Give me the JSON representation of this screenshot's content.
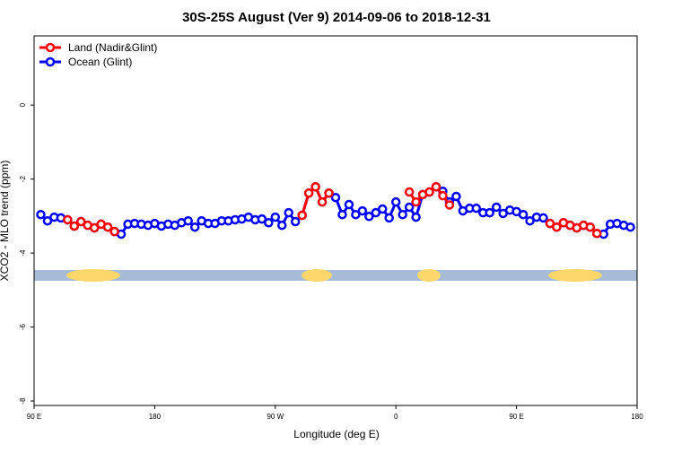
{
  "chart_data": {
    "type": "line",
    "title": "30S-25S August (Ver 9)   2014-09-06 to 2018-12-31",
    "x_label": "Longitude (deg E)",
    "y_label": "XCO2 - MLO trend (ppm)",
    "x": [
      -265,
      -260,
      -255,
      -250,
      -245,
      -240,
      -235,
      -230,
      -225,
      -220,
      -215,
      -210,
      -205,
      -200,
      -195,
      -190,
      -185,
      -180,
      -175,
      -170,
      -165,
      -160,
      -155,
      -150,
      -145,
      -140,
      -135,
      -130,
      -125,
      -120,
      -115,
      -110,
      -105,
      -100,
      -95,
      -90,
      -85,
      -80,
      -75,
      -70,
      -65,
      -60,
      -55,
      -50,
      -45,
      -40,
      -35,
      -30,
      -25,
      -20,
      -15,
      -10,
      -5,
      0,
      5,
      10,
      15,
      20,
      25,
      30,
      35,
      40,
      45,
      50,
      55,
      60,
      65,
      70,
      75,
      80,
      85,
      90,
      95,
      100,
      105,
      110,
      115,
      120,
      125,
      130,
      135,
      140,
      145,
      150,
      155,
      160,
      165,
      170,
      175
    ],
    "series": [
      {
        "name": "Ocean (Glint)",
        "color": "#0000ff",
        "values": [
          -2.96,
          -3.13,
          -3.03,
          -3.05,
          -3.1,
          -3.27,
          -3.15,
          -3.25,
          -3.32,
          -3.22,
          -3.3,
          -3.42,
          -3.49,
          -3.22,
          -3.2,
          -3.22,
          -3.25,
          -3.2,
          -3.27,
          -3.22,
          -3.25,
          -3.18,
          -3.13,
          -3.3,
          -3.13,
          -3.2,
          -3.2,
          -3.13,
          -3.13,
          -3.1,
          -3.08,
          -3.03,
          -3.1,
          -3.08,
          -3.18,
          -3.03,
          -3.25,
          -2.91,
          -3.15,
          -2.98,
          -2.38,
          -2.21,
          -2.62,
          -2.38,
          -2.5,
          -2.96,
          -2.69,
          -2.96,
          -2.86,
          -3.01,
          -2.91,
          -2.81,
          -3.05,
          -2.62,
          -2.96,
          -2.76,
          -3.03,
          -2.42,
          -2.35,
          -2.21,
          -2.33,
          -2.62,
          -2.47,
          -2.86,
          -2.79,
          -2.79,
          -2.91,
          -2.91,
          -2.76,
          -2.93,
          -2.84,
          -2.88,
          -2.96,
          -3.13,
          -3.03,
          -3.05,
          -3.2,
          -3.3,
          -3.18,
          -3.25,
          -3.32,
          -3.25,
          -3.3,
          -3.47,
          -3.49,
          -3.22,
          -3.2,
          -3.25,
          -3.3
        ]
      },
      {
        "name": "Land (Nadir&Glint)",
        "color": "#ff0000",
        "values": [
          null,
          null,
          null,
          null,
          -3.1,
          -3.27,
          -3.15,
          -3.25,
          -3.32,
          -3.22,
          -3.3,
          -3.42,
          null,
          null,
          null,
          null,
          null,
          null,
          null,
          null,
          null,
          null,
          null,
          null,
          null,
          null,
          null,
          null,
          null,
          null,
          null,
          null,
          null,
          null,
          null,
          null,
          null,
          null,
          null,
          -2.98,
          -2.38,
          -2.21,
          -2.62,
          -2.38,
          null,
          null,
          null,
          null,
          null,
          null,
          null,
          null,
          null,
          null,
          null,
          -2.35,
          -2.62,
          -2.42,
          -2.35,
          -2.21,
          -2.45,
          -2.7,
          null,
          null,
          null,
          null,
          null,
          null,
          null,
          null,
          null,
          null,
          null,
          null,
          null,
          null,
          -3.2,
          -3.3,
          -3.18,
          -3.25,
          -3.32,
          -3.25,
          -3.3,
          -3.47,
          null,
          null,
          null,
          null,
          null
        ]
      }
    ],
    "legend_order": [
      "Land (Nadir&Glint)",
      "Ocean (Glint)"
    ],
    "xlim": [
      -270,
      180
    ],
    "xticks": [
      {
        "value": -270,
        "label": "90 E"
      },
      {
        "value": -180,
        "label": "180"
      },
      {
        "value": -90,
        "label": "90 W"
      },
      0,
      {
        "value": 90,
        "label": "90 E"
      },
      {
        "value": 180,
        "label": "180"
      }
    ],
    "ylim": [
      -8.12,
      1.87
    ],
    "yticks": [
      0,
      -2,
      -4,
      -6,
      -8
    ],
    "legend": "top-left"
  }
}
